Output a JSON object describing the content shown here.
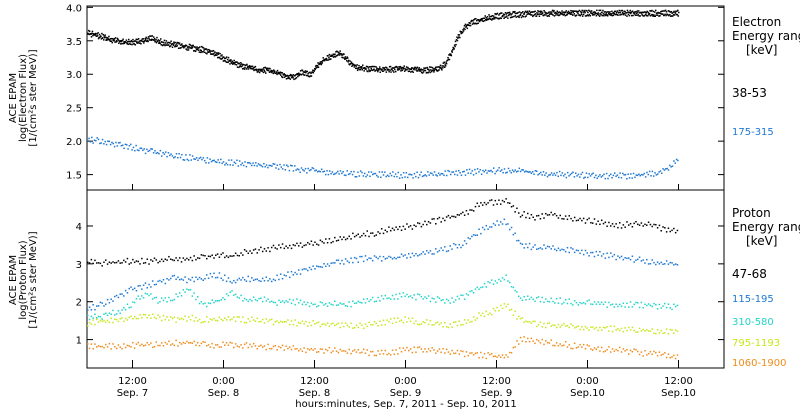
{
  "chart_data": [
    {
      "type": "scatter",
      "panel": "electron",
      "ylabel_lines": [
        "ACE EPAM",
        "log(Electron Flux)",
        "[1/(cm²s ster MeV)]"
      ],
      "ylim": [
        1.27,
        4.02
      ],
      "yticks": [
        1.5,
        2.0,
        2.5,
        3.0,
        3.5,
        4.0
      ],
      "ytick_labels": [
        "1.5",
        "2.0",
        "2.5",
        "3.0",
        "3.5",
        "4.0"
      ],
      "legend_title_lines": [
        "Electron",
        "Energy ranges",
        "[keV]"
      ],
      "legend_placement": "right",
      "series": [
        {
          "name": "38-53",
          "color": "#000000",
          "x": [
            0,
            0.5,
            1,
            1.5,
            2,
            2.5,
            3,
            3.5,
            4,
            4.5,
            5,
            5.5,
            6,
            6.5,
            7,
            7.5,
            8,
            8.5,
            9,
            9.5,
            10,
            10.5,
            11,
            11.5,
            12,
            12.5,
            13,
            13.5,
            14,
            14.5,
            15,
            15.5,
            16,
            16.5,
            17,
            17.5,
            18,
            18.5,
            19,
            19.5,
            20,
            20.5,
            21,
            21.5,
            22,
            22.5,
            23,
            23.5,
            24,
            24.5,
            25,
            25.5,
            26,
            26.5,
            27,
            27.5,
            28,
            28.5,
            29,
            29.5,
            30,
            30.5,
            31,
            31.5,
            32,
            32.5,
            33,
            33.5,
            34,
            34.5,
            35,
            35.5,
            36,
            36.5,
            37,
            37.5,
            38,
            38.5,
            39,
            39.5,
            40,
            40.5,
            41,
            41.5,
            42,
            42.5,
            43,
            43.5,
            44,
            44.5,
            45,
            45.5,
            46,
            46.5,
            47,
            47.5,
            48,
            48.5,
            49,
            49.5,
            50,
            50.5,
            51,
            51.5,
            52,
            52.5,
            53,
            53.5,
            54,
            54.5,
            55,
            55.5,
            56,
            56.5,
            57,
            57.5,
            58,
            58.5,
            59,
            59.5,
            60,
            60.5,
            61,
            61.5,
            62,
            62.5,
            63,
            63.5,
            64,
            64.5,
            65,
            65.5,
            66,
            66.5,
            67,
            67.5,
            68,
            68.5,
            69,
            69.5,
            70,
            70.5,
            71,
            71.5,
            72,
            72.5,
            73,
            73.5,
            74,
            74.5,
            75,
            75.5,
            76,
            76.5,
            77,
            77.5,
            78,
            78.5
          ],
          "y": [
            3.6,
            3.59,
            3.58,
            3.56,
            3.55,
            3.53,
            3.51,
            3.5,
            3.48,
            3.47,
            3.47,
            3.47,
            3.47,
            3.47,
            3.48,
            3.5,
            3.52,
            3.53,
            3.51,
            3.48,
            3.46,
            3.45,
            3.44,
            3.43,
            3.42,
            3.41,
            3.4,
            3.39,
            3.38,
            3.37,
            3.36,
            3.35,
            3.33,
            3.31,
            3.29,
            3.26,
            3.23,
            3.21,
            3.18,
            3.15,
            3.13,
            3.11,
            3.1,
            3.08,
            3.07,
            3.06,
            3.05,
            3.05,
            3.05,
            3.04,
            3.02,
            3.0,
            2.97,
            2.95,
            2.94,
            2.96,
            2.98,
            3.01,
            3.0,
            2.98,
            3.05,
            3.12,
            3.17,
            3.21,
            3.24,
            3.27,
            3.29,
            3.3,
            3.26,
            3.2,
            3.14,
            3.1,
            3.08,
            3.08,
            3.07,
            3.07,
            3.07,
            3.06,
            3.06,
            3.06,
            3.06,
            3.06,
            3.06,
            3.07,
            3.07,
            3.06,
            3.06,
            3.06,
            3.06,
            3.05,
            3.05,
            3.06,
            3.07,
            3.08,
            3.09,
            3.15,
            3.25,
            3.35,
            3.5,
            3.6,
            3.68,
            3.72,
            3.75,
            3.78,
            3.8,
            3.82,
            3.83,
            3.84,
            3.85,
            3.86,
            3.86,
            3.87,
            3.87,
            3.88,
            3.88,
            3.88,
            3.89,
            3.89,
            3.89,
            3.9,
            3.9,
            3.9,
            3.9,
            3.9,
            3.9,
            3.9,
            3.9,
            3.9,
            3.9,
            3.9,
            3.9,
            3.9,
            3.9,
            3.9,
            3.9,
            3.9,
            3.9,
            3.9,
            3.9,
            3.9,
            3.9,
            3.9,
            3.9,
            3.9,
            3.9,
            3.9,
            3.9,
            3.9,
            3.9,
            3.9,
            3.9,
            3.9,
            3.9,
            3.9,
            3.9,
            3.9,
            3.9,
            3.9
          ]
        },
        {
          "name": "175-315",
          "color": "#1f78d2",
          "x": [
            0,
            2,
            4,
            6,
            8,
            10,
            12,
            14,
            16,
            18,
            20,
            22,
            24,
            26,
            28,
            30,
            32,
            34,
            36,
            38,
            40,
            42,
            44,
            46,
            48,
            50,
            52,
            54,
            56,
            58,
            60,
            62,
            64,
            66,
            68,
            70,
            72,
            74,
            76,
            78,
            80,
            82,
            84,
            86,
            88,
            90,
            92,
            94,
            96,
            98,
            100,
            102,
            104,
            106,
            108,
            110
          ],
          "y": [
            2.02,
            1.99,
            1.96,
            1.93,
            1.9,
            1.86,
            1.83,
            1.8,
            1.77,
            1.75,
            1.73,
            1.71,
            1.69,
            1.67,
            1.66,
            1.64,
            1.63,
            1.62,
            1.6,
            1.58,
            1.56,
            1.55,
            1.53,
            1.52,
            1.51,
            1.5,
            1.5,
            1.49,
            1.49,
            1.48,
            1.48,
            1.48,
            1.49,
            1.5,
            1.51,
            1.52,
            1.53,
            1.54,
            1.55,
            1.56,
            1.55,
            1.53,
            1.51,
            1.5,
            1.49,
            1.48,
            1.48,
            1.47,
            1.47,
            1.47,
            1.47,
            1.48,
            1.49,
            1.5,
            1.6,
            1.75
          ]
        }
      ]
    },
    {
      "type": "scatter",
      "panel": "proton",
      "ylabel_lines": [
        "ACE EPAM",
        "log(Proton Flux)",
        "[1/(cm²s ster MeV)]"
      ],
      "ylim": [
        0.25,
        4.95
      ],
      "yticks": [
        1,
        2,
        3,
        4
      ],
      "ytick_labels": [
        "1",
        "2",
        "3",
        "4"
      ],
      "legend_title_lines": [
        "Proton",
        "Energy ranges",
        "[keV]"
      ],
      "legend_placement": "right",
      "series": [
        {
          "name": "47-68",
          "color": "#000000",
          "x": [
            0,
            6,
            12,
            18,
            24,
            30,
            36,
            42,
            48,
            54,
            60,
            66,
            72,
            78,
            84,
            90,
            96,
            102,
            108,
            114,
            120,
            126,
            132,
            138,
            144,
            150,
            156,
            162,
            168,
            174,
            180,
            186,
            192,
            198,
            204,
            210,
            216,
            222,
            228,
            234,
            240,
            246
          ],
          "y": [
            3.02,
            3.0,
            3.02,
            3.05,
            3.04,
            3.08,
            3.12,
            3.1,
            3.15,
            3.2,
            3.18,
            3.3,
            3.35,
            3.4,
            3.45,
            3.5,
            3.55,
            3.6,
            3.7,
            3.75,
            3.8,
            3.9,
            3.95,
            4.0,
            4.1,
            4.2,
            4.3,
            4.5,
            4.6,
            4.65,
            4.3,
            4.2,
            4.3,
            4.2,
            4.15,
            4.1,
            4.05,
            4.0,
            4.05,
            4.0,
            3.9,
            3.8
          ]
        },
        {
          "name": "115-195",
          "color": "#1f78d2",
          "x": [
            0,
            6,
            12,
            18,
            24,
            30,
            36,
            42,
            48,
            54,
            60,
            66,
            72,
            78,
            84,
            90,
            96,
            102,
            108,
            114,
            120,
            126,
            132,
            138,
            144,
            150,
            156,
            162,
            168,
            174,
            180,
            186,
            192,
            198,
            204,
            210,
            216,
            222,
            228,
            234,
            240,
            246
          ],
          "y": [
            1.8,
            1.9,
            2.1,
            2.3,
            2.4,
            2.5,
            2.6,
            2.55,
            2.6,
            2.7,
            2.5,
            2.6,
            2.55,
            2.6,
            2.7,
            2.8,
            2.9,
            3.0,
            3.05,
            3.1,
            3.15,
            3.1,
            3.2,
            3.25,
            3.3,
            3.4,
            3.5,
            3.8,
            4.0,
            4.1,
            3.5,
            3.4,
            3.4,
            3.35,
            3.3,
            3.25,
            3.2,
            3.15,
            3.1,
            3.05,
            3.0,
            2.95
          ]
        },
        {
          "name": "310-580",
          "color": "#22d4c8",
          "x": [
            0,
            6,
            12,
            18,
            24,
            30,
            36,
            42,
            48,
            54,
            60,
            66,
            72,
            78,
            84,
            90,
            96,
            102,
            108,
            114,
            120,
            126,
            132,
            138,
            144,
            150,
            156,
            162,
            168,
            174,
            180,
            186,
            192,
            198,
            204,
            210,
            216,
            222,
            228,
            234,
            240,
            246
          ],
          "y": [
            1.55,
            1.6,
            1.7,
            1.9,
            2.2,
            2.0,
            2.1,
            2.3,
            1.9,
            2.0,
            2.2,
            2.0,
            2.05,
            1.95,
            2.0,
            1.95,
            1.9,
            1.95,
            1.9,
            2.0,
            2.05,
            2.1,
            2.15,
            2.1,
            2.05,
            2.0,
            2.1,
            2.3,
            2.5,
            2.6,
            2.1,
            2.05,
            2.0,
            2.0,
            1.95,
            1.95,
            1.9,
            1.9,
            1.9,
            1.88,
            1.86,
            1.85
          ]
        },
        {
          "name": "795-1193",
          "color": "#c8e61a",
          "x": [
            0,
            6,
            12,
            18,
            24,
            30,
            36,
            42,
            48,
            54,
            60,
            66,
            72,
            78,
            84,
            90,
            96,
            102,
            108,
            114,
            120,
            126,
            132,
            138,
            144,
            150,
            156,
            162,
            168,
            174,
            180,
            186,
            192,
            198,
            204,
            210,
            216,
            222,
            228,
            234,
            240,
            246
          ],
          "y": [
            1.42,
            1.45,
            1.5,
            1.55,
            1.6,
            1.55,
            1.5,
            1.55,
            1.5,
            1.5,
            1.55,
            1.5,
            1.5,
            1.45,
            1.45,
            1.4,
            1.4,
            1.38,
            1.35,
            1.35,
            1.4,
            1.45,
            1.5,
            1.45,
            1.4,
            1.35,
            1.4,
            1.6,
            1.7,
            1.9,
            1.5,
            1.4,
            1.35,
            1.35,
            1.3,
            1.3,
            1.28,
            1.25,
            1.25,
            1.22,
            1.2,
            1.2
          ]
        },
        {
          "name": "1060-1900",
          "color": "#f08c1c",
          "x": [
            0,
            6,
            12,
            18,
            24,
            30,
            36,
            42,
            48,
            54,
            60,
            66,
            72,
            78,
            84,
            90,
            96,
            102,
            108,
            114,
            120,
            126,
            132,
            138,
            144,
            150,
            156,
            162,
            168,
            174,
            180,
            186,
            192,
            198,
            204,
            210,
            216,
            222,
            228,
            234,
            240,
            246
          ],
          "y": [
            0.82,
            0.8,
            0.8,
            0.82,
            0.85,
            0.85,
            0.88,
            0.9,
            0.85,
            0.82,
            0.85,
            0.82,
            0.8,
            0.78,
            0.75,
            0.72,
            0.7,
            0.7,
            0.68,
            0.65,
            0.62,
            0.65,
            0.7,
            0.72,
            0.7,
            0.65,
            0.6,
            0.58,
            0.55,
            0.5,
            1.0,
            0.95,
            0.9,
            0.85,
            0.8,
            0.75,
            0.72,
            0.7,
            0.65,
            0.6,
            0.58,
            0.55
          ]
        }
      ]
    }
  ],
  "x_axis": {
    "label": "hours:minutes, Sep.  7, 2011 - Sep. 10, 2011",
    "ticks": [
      {
        "time": "12:00",
        "date": "Sep. 7"
      },
      {
        "time": "0:00",
        "date": "Sep. 8"
      },
      {
        "time": "12:00",
        "date": "Sep. 8"
      },
      {
        "time": "0:00",
        "date": "Sep. 9"
      },
      {
        "time": "12:00",
        "date": "Sep. 9"
      },
      {
        "time": "0:00",
        "date": "Sep.10"
      },
      {
        "time": "12:00",
        "date": "Sep.10"
      }
    ]
  }
}
